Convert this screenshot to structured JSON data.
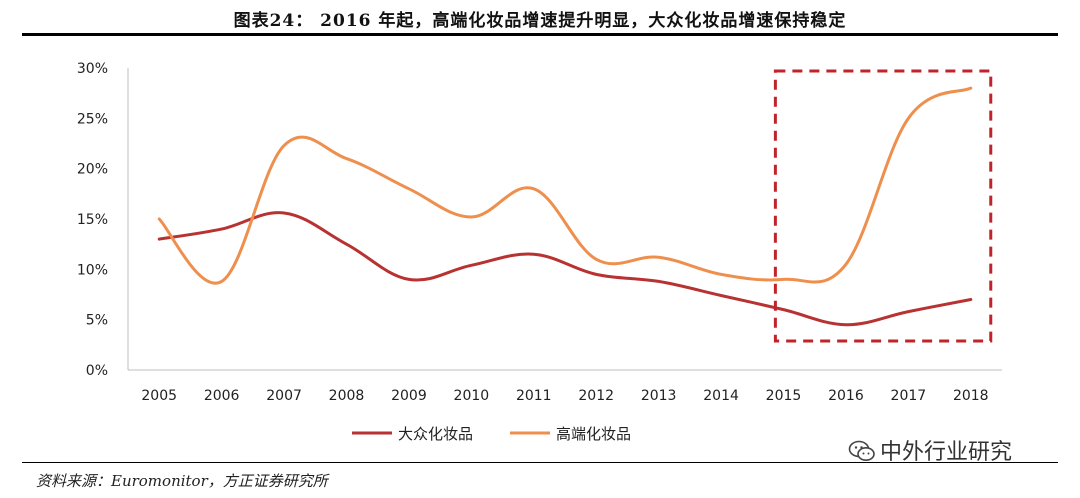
{
  "header": {
    "title": "图表24：  2016 年起，高端化妆品增速提升明显，大众化妆品增速保持稳定"
  },
  "footer": {
    "source": "资料来源：Euromonitor，方正证券研究所"
  },
  "watermark": {
    "text": "中外行业研究"
  },
  "chart_data": {
    "type": "line",
    "categories": [
      "2005",
      "2006",
      "2007",
      "2008",
      "2009",
      "2010",
      "2011",
      "2012",
      "2013",
      "2014",
      "2015",
      "2016",
      "2017",
      "2018"
    ],
    "y_ticks": [
      "0%",
      "5%",
      "10%",
      "15%",
      "20%",
      "25%",
      "30%"
    ],
    "ylim": [
      0,
      30
    ],
    "series": [
      {
        "name": "大众化妆品",
        "color": "#b83232",
        "values": [
          13.0,
          14.0,
          15.6,
          12.5,
          9.0,
          10.4,
          11.5,
          9.5,
          8.8,
          7.4,
          6.0,
          4.5,
          5.8,
          7.0
        ]
      },
      {
        "name": "高端化妆品",
        "color": "#ee8f4e",
        "values": [
          15.0,
          8.8,
          22.3,
          21.0,
          18.0,
          15.2,
          18.0,
          11.0,
          11.2,
          9.5,
          9.0,
          10.5,
          25.0,
          28.0
        ]
      }
    ],
    "highlight": {
      "x_from": "2015",
      "x_to": "2018",
      "color": "#c0242a"
    },
    "legend_position": "bottom",
    "grid": false
  }
}
